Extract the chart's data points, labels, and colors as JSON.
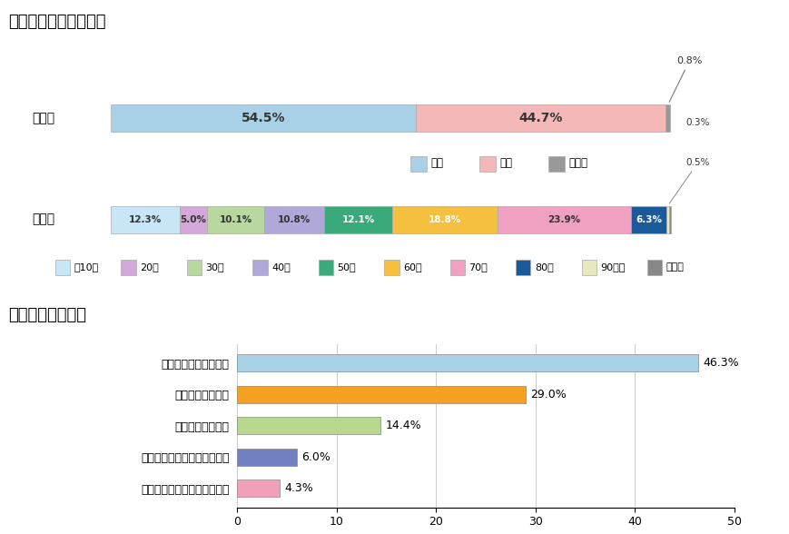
{
  "title1": "【回答者の基本情報】",
  "title2": "【役割別認知度】",
  "gender_label": "性　別",
  "age_label": "年　代",
  "gender_values": [
    54.5,
    44.7,
    0.8
  ],
  "gender_labels": [
    "54.5%",
    "44.7%",
    "0.8%"
  ],
  "gender_colors": [
    "#a8d0e6",
    "#f4b8b8",
    "#999999"
  ],
  "gender_legend": [
    "男性",
    "女性",
    "未回答"
  ],
  "age_values": [
    12.3,
    5.0,
    10.1,
    10.8,
    12.1,
    18.8,
    23.9,
    6.3,
    0.5,
    0.3
  ],
  "age_labels": [
    "12.3%",
    "5.0%",
    "10.1%",
    "10.8%",
    "12.1%",
    "18.8%",
    "23.9%",
    "6.3%",
    "",
    ""
  ],
  "age_colors": [
    "#c8e6f5",
    "#d4a8d8",
    "#b8d8a0",
    "#b0a8d8",
    "#3aaa7a",
    "#f5c040",
    "#f0a0c0",
    "#1a5a9a",
    "#e8e8c0",
    "#888888"
  ],
  "age_legend": [
    "～10代",
    "20代",
    "30代",
    "40代",
    "50代",
    "60代",
    "70代",
    "80代",
    "90代～",
    "未回答"
  ],
  "bar_labels": [
    "地域救命救急センター",
    "地域医療支援病院",
    "地域災害拠点病院",
    "地域周産期母子医療センター",
    "群馬県がん診療連携推進病院"
  ],
  "bar_values": [
    46.3,
    29.0,
    14.4,
    6.0,
    4.3
  ],
  "bar_colors": [
    "#a8d0e6",
    "#f5a020",
    "#b8d890",
    "#7080c0",
    "#f0a0b8"
  ],
  "bar_xlim": [
    0,
    50
  ],
  "bar_xticks": [
    0,
    10,
    20,
    30,
    40,
    50
  ]
}
